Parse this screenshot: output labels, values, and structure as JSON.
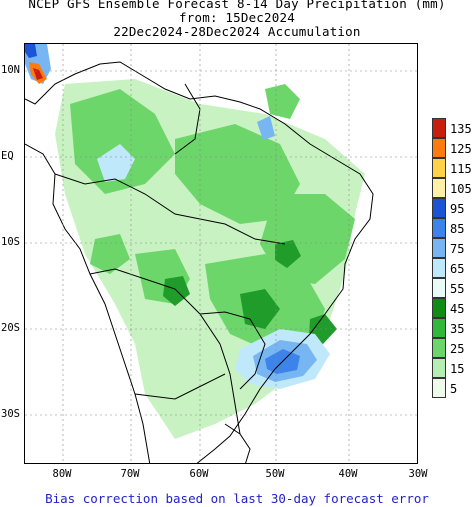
{
  "title": {
    "line1": "NCEP GFS Ensemble Forecast 8-14 Day Precipitation (mm)",
    "line2": "from: 15Dec2024",
    "line3": "22Dec2024-28Dec2024 Accumulation"
  },
  "axes": {
    "y_ticks": [
      "10N",
      "EQ",
      "10S",
      "20S",
      "30S"
    ],
    "x_ticks": [
      "80W",
      "70W",
      "60W",
      "50W",
      "40W",
      "30W"
    ]
  },
  "legend": {
    "levels": [
      "135",
      "125",
      "115",
      "105",
      "95",
      "85",
      "75",
      "65",
      "55",
      "45",
      "35",
      "25",
      "15",
      "5"
    ],
    "colors": [
      "#c81e0e",
      "#ff7a0f",
      "#ffd24a",
      "#fff0a8",
      "#1b55d6",
      "#3d84ea",
      "#77b6f2",
      "#bfe9fb",
      "#e9fbf6",
      "#0e8c14",
      "#31b739",
      "#6cd66a",
      "#b5eeb0",
      "#eefbea"
    ]
  },
  "footer": "Bias correction based on last 30-day forecast error"
}
